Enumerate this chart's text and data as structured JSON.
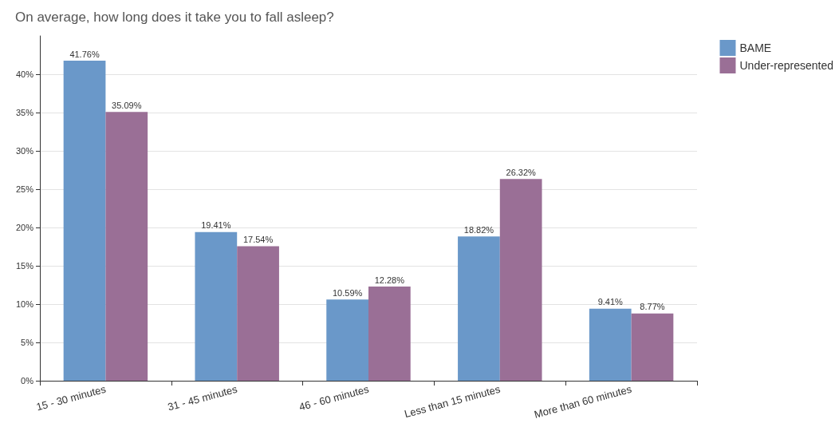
{
  "chart_data": {
    "type": "bar",
    "title": "On average, how long does it take you to fall asleep?",
    "categories": [
      "15 - 30 minutes",
      "31 - 45 minutes",
      "46 - 60 minutes",
      "Less than 15 minutes",
      "More than 60 minutes"
    ],
    "series": [
      {
        "name": "BAME",
        "color": "#6a98c9",
        "values": [
          41.76,
          19.41,
          10.59,
          18.82,
          9.41
        ],
        "value_labels": [
          "41.76%",
          "19.41%",
          "10.59%",
          "18.82%",
          "9.41%"
        ]
      },
      {
        "name": "Under-represented",
        "color": "#9a6f96",
        "values": [
          35.09,
          17.54,
          12.28,
          26.32,
          8.77
        ],
        "value_labels": [
          "35.09%",
          "17.54%",
          "12.28%",
          "26.32%",
          "8.77%"
        ]
      }
    ],
    "ylim": [
      0,
      45
    ],
    "yticks": [
      {
        "value": 0,
        "label": "0%"
      },
      {
        "value": 5,
        "label": "5%"
      },
      {
        "value": 10,
        "label": "10%"
      },
      {
        "value": 15,
        "label": "15%"
      },
      {
        "value": 20,
        "label": "20%"
      },
      {
        "value": 25,
        "label": "25%"
      },
      {
        "value": 30,
        "label": "30%"
      },
      {
        "value": 35,
        "label": "35%"
      },
      {
        "value": 40,
        "label": "40%"
      }
    ],
    "grid": "y",
    "legend": "top right"
  }
}
